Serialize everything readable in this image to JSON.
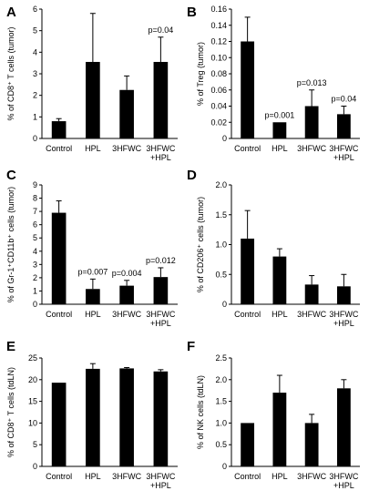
{
  "chart_data": [
    {
      "panel": "A",
      "type": "bar",
      "ylabel": "% of CD8⁺ T cells (tumor)",
      "categories": [
        "Control",
        "HPL",
        "3HFWC",
        "3HFWC\n+HPL"
      ],
      "values": [
        0.8,
        3.55,
        2.25,
        3.55
      ],
      "errors": [
        0.12,
        2.25,
        0.65,
        1.15
      ],
      "annotations": [
        "",
        "",
        "",
        "p=0.04"
      ],
      "ylim": [
        0,
        6
      ],
      "yticks": [
        0,
        1,
        2,
        3,
        4,
        5,
        6
      ],
      "tick_labels": [
        "0",
        "1",
        "2",
        "3",
        "4",
        "5",
        "6"
      ]
    },
    {
      "panel": "B",
      "type": "bar",
      "ylabel": "% of Treg (tumor)",
      "categories": [
        "Control",
        "HPL",
        "3HFWC",
        "3HFWC\n+HPL"
      ],
      "values": [
        0.12,
        0.02,
        0.04,
        0.03
      ],
      "errors": [
        0.03,
        0.0,
        0.02,
        0.01
      ],
      "annotations": [
        "",
        "p=0.001",
        "p=0.013",
        "p=0.04"
      ],
      "ylim": [
        0,
        0.16
      ],
      "yticks": [
        0,
        0.02,
        0.04,
        0.06,
        0.08,
        0.1,
        0.12,
        0.14,
        0.16
      ],
      "tick_labels": [
        "0",
        "0.02",
        "0.04",
        "0.06",
        "0.08",
        "0.10",
        "0.12",
        "0.14",
        "0.16"
      ]
    },
    {
      "panel": "C",
      "type": "bar",
      "ylabel": "% of Gr-1⁺CD11b⁺ cells (tumor)",
      "categories": [
        "Control",
        "HPL",
        "3HFWC",
        "3HFWC\n+HPL"
      ],
      "values": [
        6.9,
        1.15,
        1.4,
        2.05
      ],
      "errors": [
        0.9,
        0.75,
        0.4,
        0.7
      ],
      "annotations": [
        "",
        "p=0.007",
        "p=0.004",
        "p=0.012"
      ],
      "ylim": [
        0,
        9
      ],
      "yticks": [
        0,
        1,
        2,
        3,
        4,
        5,
        6,
        7,
        8,
        9
      ],
      "tick_labels": [
        "0",
        "1",
        "2",
        "3",
        "4",
        "5",
        "6",
        "7",
        "8",
        "9"
      ]
    },
    {
      "panel": "D",
      "type": "bar",
      "ylabel": "% of CD206⁺ cells (tumor)",
      "categories": [
        "Control",
        "HPL",
        "3HFWC",
        "3HFWC\n+HPL"
      ],
      "values": [
        1.1,
        0.8,
        0.33,
        0.3
      ],
      "errors": [
        0.47,
        0.13,
        0.15,
        0.2
      ],
      "annotations": [
        "",
        "",
        "",
        ""
      ],
      "ylim": [
        0,
        2
      ],
      "yticks": [
        0,
        0.5,
        1,
        1.5,
        2
      ],
      "tick_labels": [
        "0",
        "0.5",
        "1.0",
        "1.5",
        "2.0"
      ]
    },
    {
      "panel": "E",
      "type": "bar",
      "ylabel": "% of CD8⁺ T cells (tdLN)",
      "categories": [
        "Control",
        "HPL",
        "3HFWC",
        "3HFWC\n+HPL"
      ],
      "values": [
        19.3,
        22.5,
        22.6,
        21.9
      ],
      "errors": [
        0.0,
        1.2,
        0.2,
        0.4
      ],
      "annotations": [
        "",
        "",
        "",
        ""
      ],
      "ylim": [
        0,
        25
      ],
      "yticks": [
        0,
        5,
        10,
        15,
        20,
        25
      ],
      "tick_labels": [
        "0",
        "5",
        "10",
        "15",
        "20",
        "25"
      ]
    },
    {
      "panel": "F",
      "type": "bar",
      "ylabel": "% of NK cells (tdLN)",
      "categories": [
        "Control",
        "HPL",
        "3HFWC",
        "3HFWC\n+HPL"
      ],
      "values": [
        1.0,
        1.7,
        1.0,
        1.8
      ],
      "errors": [
        0.0,
        0.4,
        0.2,
        0.2
      ],
      "annotations": [
        "",
        "",
        "",
        ""
      ],
      "ylim": [
        0,
        2.5
      ],
      "yticks": [
        0,
        0.5,
        1,
        1.5,
        2,
        2.5
      ],
      "tick_labels": [
        "0",
        "0.5",
        "1.0",
        "1.5",
        "2.0",
        "2.5"
      ]
    }
  ]
}
